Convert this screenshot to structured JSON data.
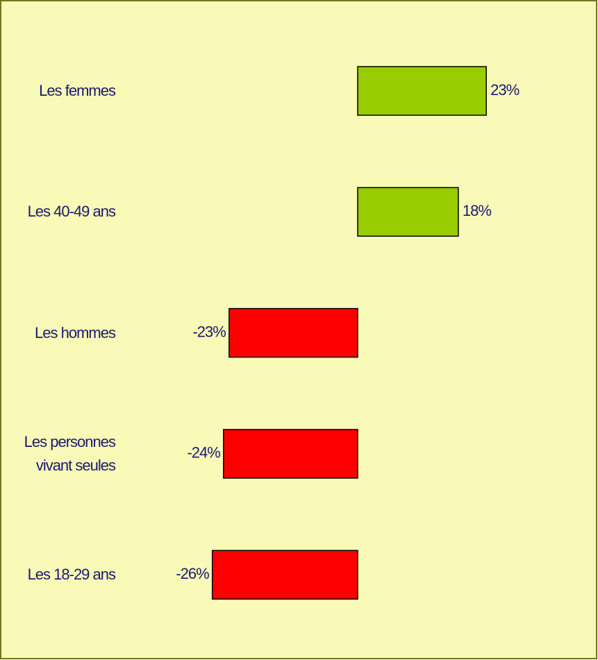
{
  "chart_data": {
    "type": "bar",
    "orientation": "horizontal",
    "categories": [
      "Les femmes",
      "Les 40-49 ans",
      "Les hommes",
      "Les personnes\nvivant seules",
      "Les 18-29 ans"
    ],
    "values": [
      23,
      18,
      -23,
      -24,
      -26
    ],
    "value_labels": [
      "23%",
      "18%",
      "-23%",
      "-24%",
      "-26%"
    ],
    "positive_color": "#99cc00",
    "negative_color": "#ff0000"
  }
}
